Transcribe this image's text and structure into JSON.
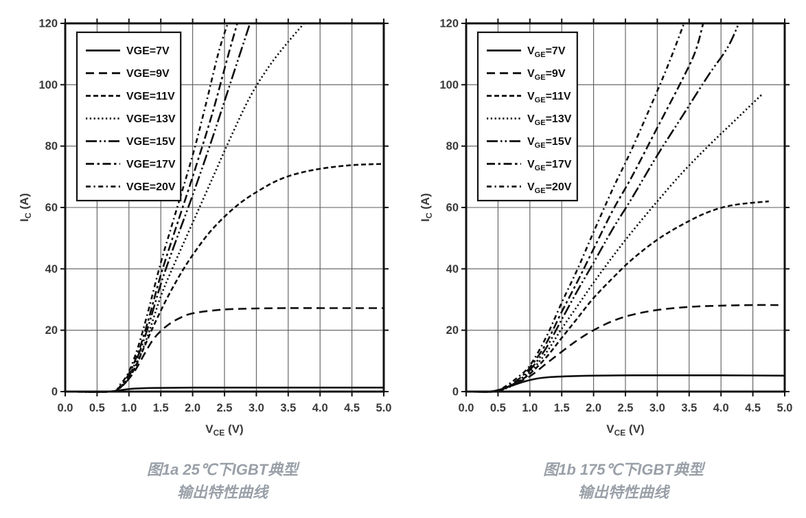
{
  "colors": {
    "background": "#ffffff",
    "curve": "#0d0d0d",
    "grid": "#5a5a5a",
    "frame": "#111111",
    "tick_label": "#3a3a3a",
    "caption": "#9aa0a8"
  },
  "chart_data": [
    {
      "type": "line",
      "id": "25c",
      "caption_line1": "图1a 25℃下IGBT典型",
      "caption_line2": "输出特性曲线",
      "xlabel": {
        "pre": "V",
        "sub": "CE",
        "post": " (V)"
      },
      "ylabel": {
        "pre": "I",
        "sub": "C",
        "post": " (A)"
      },
      "xlim": [
        0,
        5
      ],
      "ylim": [
        0,
        120
      ],
      "x_ticks": [
        "0.0",
        "0.5",
        "1.0",
        "1.5",
        "2.0",
        "2.5",
        "3.0",
        "3.5",
        "4.0",
        "4.5",
        "5.0"
      ],
      "y_ticks": [
        "0",
        "20",
        "40",
        "60",
        "80",
        "100",
        "120"
      ],
      "grid": true,
      "legend_position": "top-left",
      "series": [
        {
          "name": "VGE=7V",
          "label": {
            "pre": "VGE",
            "sub": "",
            "post": "=7V"
          },
          "style": "solid",
          "points": [
            [
              0,
              0
            ],
            [
              0.6,
              0
            ],
            [
              0.78,
              0.2
            ],
            [
              0.95,
              0.7
            ],
            [
              1.1,
              1.0
            ],
            [
              1.4,
              1.2
            ],
            [
              2,
              1.3
            ],
            [
              3,
              1.3
            ],
            [
              4,
              1.3
            ],
            [
              5,
              1.3
            ]
          ]
        },
        {
          "name": "VGE=9V",
          "label": {
            "pre": "VGE",
            "sub": "",
            "post": "=9V"
          },
          "style": "long-dash",
          "points": [
            [
              0,
              0
            ],
            [
              0.68,
              0
            ],
            [
              0.82,
              0.8
            ],
            [
              0.95,
              3
            ],
            [
              1.1,
              7
            ],
            [
              1.25,
              12.5
            ],
            [
              1.4,
              17.5
            ],
            [
              1.6,
              21.5
            ],
            [
              1.8,
              24
            ],
            [
              2.0,
              25.5
            ],
            [
              2.4,
              26.6
            ],
            [
              2.8,
              27
            ],
            [
              3.4,
              27.2
            ],
            [
              4.2,
              27.2
            ],
            [
              5,
              27.2
            ]
          ]
        },
        {
          "name": "VGE=11V",
          "label": {
            "pre": "VGE",
            "sub": "",
            "post": "=11V"
          },
          "style": "dash",
          "points": [
            [
              0,
              0
            ],
            [
              0.7,
              0
            ],
            [
              0.84,
              1
            ],
            [
              0.97,
              3.5
            ],
            [
              1.1,
              8
            ],
            [
              1.25,
              15
            ],
            [
              1.4,
              22
            ],
            [
              1.6,
              30.5
            ],
            [
              1.8,
              38
            ],
            [
              2.0,
              44.5
            ],
            [
              2.25,
              51.5
            ],
            [
              2.5,
              57
            ],
            [
              2.75,
              61.5
            ],
            [
              3.0,
              65
            ],
            [
              3.3,
              68.5
            ],
            [
              3.6,
              70.8
            ],
            [
              4.0,
              72.6
            ],
            [
              4.5,
              73.8
            ],
            [
              5.0,
              74.2
            ]
          ]
        },
        {
          "name": "VGE=13V",
          "label": {
            "pre": "VGE",
            "sub": "",
            "post": "=13V"
          },
          "style": "dot",
          "points": [
            [
              0,
              0
            ],
            [
              0.72,
              0
            ],
            [
              0.86,
              1.2
            ],
            [
              1.0,
              4.5
            ],
            [
              1.15,
              10.5
            ],
            [
              1.3,
              18.5
            ],
            [
              1.5,
              31
            ],
            [
              1.7,
              41
            ],
            [
              2.0,
              55
            ],
            [
              2.3,
              69
            ],
            [
              2.6,
              83
            ],
            [
              2.9,
              96
            ],
            [
              3.2,
              106
            ],
            [
              3.5,
              114
            ],
            [
              3.75,
              120
            ]
          ]
        },
        {
          "name": "VGE=15V",
          "label": {
            "pre": "VGE",
            "sub": "",
            "post": "=15V"
          },
          "style": "dash-dot-dot",
          "points": [
            [
              0,
              0
            ],
            [
              0.72,
              0
            ],
            [
              0.86,
              1.5
            ],
            [
              1.0,
              5
            ],
            [
              1.15,
              12
            ],
            [
              1.3,
              21
            ],
            [
              1.5,
              35
            ],
            [
              1.7,
              47
            ],
            [
              2.0,
              64
            ],
            [
              2.3,
              82
            ],
            [
              2.6,
              101
            ],
            [
              2.9,
              120
            ]
          ]
        },
        {
          "name": "VGE=17V",
          "label": {
            "pre": "VGE",
            "sub": "",
            "post": "=17V"
          },
          "style": "dash-dot",
          "points": [
            [
              0,
              0
            ],
            [
              0.72,
              0
            ],
            [
              0.86,
              1.7
            ],
            [
              1.0,
              5.8
            ],
            [
              1.15,
              13
            ],
            [
              1.3,
              23
            ],
            [
              1.5,
              38
            ],
            [
              1.7,
              51
            ],
            [
              2.0,
              70
            ],
            [
              2.3,
              90
            ],
            [
              2.55,
              109
            ],
            [
              2.7,
              120
            ]
          ]
        },
        {
          "name": "VGE=20V",
          "label": {
            "pre": "VGE",
            "sub": "",
            "post": "=20V"
          },
          "style": "fine-dash-dot",
          "points": [
            [
              0,
              0
            ],
            [
              0.72,
              0
            ],
            [
              0.85,
              2
            ],
            [
              1.0,
              6.5
            ],
            [
              1.15,
              15
            ],
            [
              1.3,
              26
            ],
            [
              1.5,
              42
            ],
            [
              1.7,
              56
            ],
            [
              2.0,
              77
            ],
            [
              2.2,
              93
            ],
            [
              2.4,
              110
            ],
            [
              2.55,
              120
            ]
          ]
        }
      ]
    },
    {
      "type": "line",
      "id": "175c",
      "caption_line1": "图1b 175℃下IGBT典型",
      "caption_line2": "输出特性曲线",
      "xlabel": {
        "pre": "V",
        "sub": "CE",
        "post": " (V)"
      },
      "ylabel": {
        "pre": "I",
        "sub": "C",
        "post": " (A)"
      },
      "xlim": [
        0,
        5
      ],
      "ylim": [
        0,
        120
      ],
      "x_ticks": [
        "0.0",
        "0.5",
        "1.0",
        "1.5",
        "2.0",
        "2.5",
        "3.0",
        "3.5",
        "4.0",
        "4.5",
        "5.0"
      ],
      "y_ticks": [
        "0",
        "20",
        "40",
        "60",
        "80",
        "100",
        "120"
      ],
      "grid": true,
      "legend_position": "top-left",
      "series": [
        {
          "name": "VGE=7V",
          "label": {
            "pre": "V",
            "sub": "GE",
            "post": "=7V"
          },
          "style": "solid",
          "points": [
            [
              0,
              0
            ],
            [
              0.35,
              0
            ],
            [
              0.5,
              0.5
            ],
            [
              0.7,
              1.8
            ],
            [
              0.9,
              3.2
            ],
            [
              1.1,
              4.2
            ],
            [
              1.3,
              4.7
            ],
            [
              1.6,
              5
            ],
            [
              2.0,
              5.2
            ],
            [
              2.6,
              5.3
            ],
            [
              3.2,
              5.3
            ],
            [
              4.0,
              5.3
            ],
            [
              5.0,
              5.2
            ]
          ]
        },
        {
          "name": "VGE=9V",
          "label": {
            "pre": "V",
            "sub": "GE",
            "post": "=9V"
          },
          "style": "long-dash",
          "points": [
            [
              0,
              0
            ],
            [
              0.4,
              0
            ],
            [
              0.56,
              0.8
            ],
            [
              0.75,
              2.5
            ],
            [
              1.0,
              5
            ],
            [
              1.25,
              9
            ],
            [
              1.5,
              13
            ],
            [
              1.75,
              16.8
            ],
            [
              2.0,
              20
            ],
            [
              2.3,
              23
            ],
            [
              2.6,
              25
            ],
            [
              3.0,
              26.6
            ],
            [
              3.5,
              27.6
            ],
            [
              4.0,
              28
            ],
            [
              4.5,
              28.2
            ],
            [
              4.9,
              28.2
            ]
          ]
        },
        {
          "name": "VGE=11V",
          "label": {
            "pre": "V",
            "sub": "GE",
            "post": "=11V"
          },
          "style": "dash",
          "points": [
            [
              0,
              0
            ],
            [
              0.42,
              0
            ],
            [
              0.6,
              1
            ],
            [
              0.8,
              3
            ],
            [
              1.0,
              5.8
            ],
            [
              1.25,
              11
            ],
            [
              1.5,
              17.5
            ],
            [
              1.75,
              24
            ],
            [
              2.0,
              30.5
            ],
            [
              2.3,
              37
            ],
            [
              2.6,
              43
            ],
            [
              3.0,
              49.5
            ],
            [
              3.4,
              54.5
            ],
            [
              3.8,
              58.5
            ],
            [
              4.2,
              60.8
            ],
            [
              4.75,
              62
            ]
          ]
        },
        {
          "name": "VGE=13V",
          "label": {
            "pre": "V",
            "sub": "GE",
            "post": "=13V"
          },
          "style": "dot",
          "points": [
            [
              0,
              0
            ],
            [
              0.45,
              0
            ],
            [
              0.62,
              1
            ],
            [
              0.82,
              3
            ],
            [
              1.0,
              6.3
            ],
            [
              1.25,
              12.5
            ],
            [
              1.5,
              20.5
            ],
            [
              1.75,
              28
            ],
            [
              2.0,
              35.5
            ],
            [
              2.3,
              44
            ],
            [
              2.6,
              52
            ],
            [
              3.0,
              62
            ],
            [
              3.4,
              71.5
            ],
            [
              3.8,
              80
            ],
            [
              4.2,
              88
            ],
            [
              4.65,
              97
            ]
          ]
        },
        {
          "name": "VGE=15V",
          "label": {
            "pre": "V",
            "sub": "GE",
            "post": "=15V"
          },
          "style": "dash-dot-dot",
          "points": [
            [
              0,
              0
            ],
            [
              0.45,
              0
            ],
            [
              0.62,
              1.2
            ],
            [
              0.82,
              3.5
            ],
            [
              1.0,
              7
            ],
            [
              1.25,
              14
            ],
            [
              1.5,
              23.5
            ],
            [
              1.75,
              33
            ],
            [
              2.0,
              42
            ],
            [
              2.3,
              53
            ],
            [
              2.6,
              63
            ],
            [
              3.0,
              77
            ],
            [
              3.4,
              90
            ],
            [
              3.8,
              103
            ],
            [
              4.1,
              112
            ],
            [
              4.28,
              120
            ]
          ]
        },
        {
          "name": "VGE=17V",
          "label": {
            "pre": "V",
            "sub": "GE",
            "post": "=17V"
          },
          "style": "dash-dot",
          "points": [
            [
              0,
              0
            ],
            [
              0.45,
              0
            ],
            [
              0.62,
              1.3
            ],
            [
              0.82,
              4
            ],
            [
              1.0,
              7.8
            ],
            [
              1.25,
              15.5
            ],
            [
              1.5,
              26
            ],
            [
              1.75,
              36
            ],
            [
              2.0,
              46.5
            ],
            [
              2.3,
              59
            ],
            [
              2.6,
              70
            ],
            [
              3.0,
              86
            ],
            [
              3.4,
              102
            ],
            [
              3.6,
              111
            ],
            [
              3.72,
              120
            ]
          ]
        },
        {
          "name": "VGE=20V",
          "label": {
            "pre": "V",
            "sub": "GE",
            "post": "=20V"
          },
          "style": "fine-dash-dot",
          "points": [
            [
              0,
              0
            ],
            [
              0.45,
              0
            ],
            [
              0.6,
              1.5
            ],
            [
              0.8,
              4.5
            ],
            [
              1.0,
              8.5
            ],
            [
              1.25,
              17.5
            ],
            [
              1.5,
              29
            ],
            [
              1.75,
              40
            ],
            [
              2.0,
              52
            ],
            [
              2.3,
              66
            ],
            [
              2.6,
              79
            ],
            [
              3.0,
              98
            ],
            [
              3.2,
              108
            ],
            [
              3.42,
              120
            ]
          ]
        }
      ]
    }
  ]
}
